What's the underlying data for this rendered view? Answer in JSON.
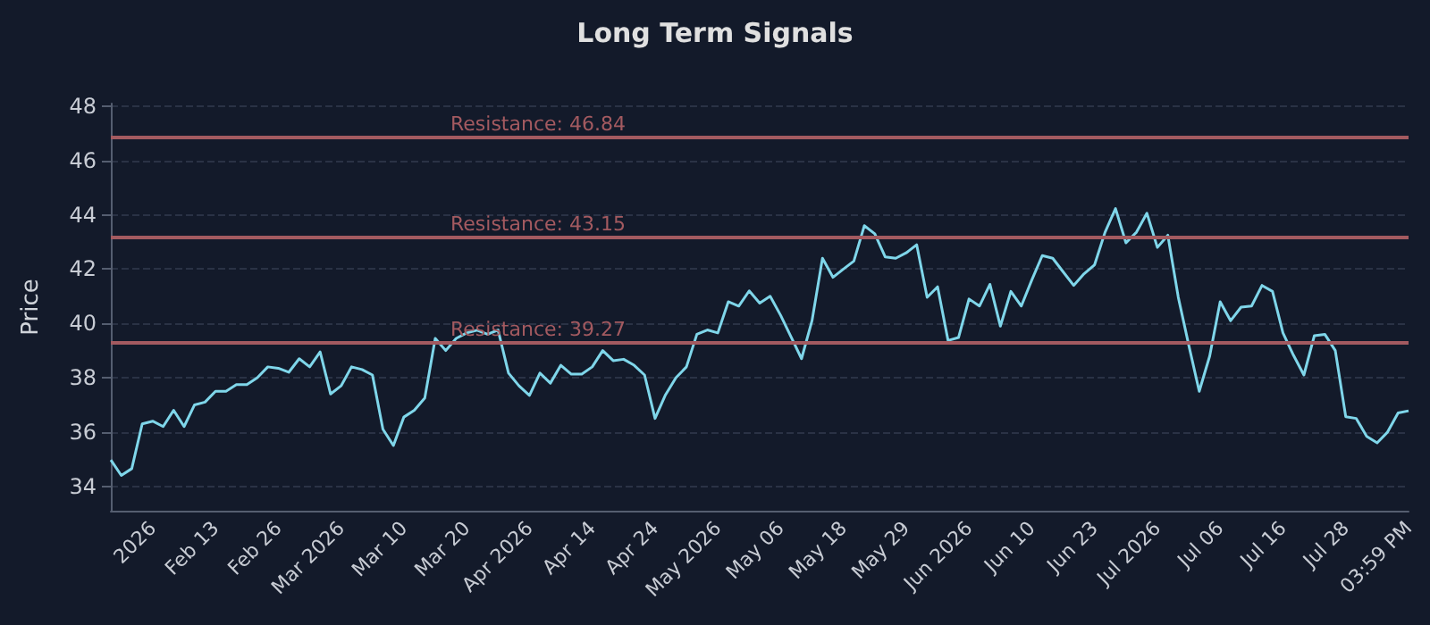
{
  "chart_data": {
    "type": "line",
    "title": "Long Term Signals",
    "ylabel": "Price",
    "categories": [
      null,
      null,
      null,
      null,
      "2026",
      null,
      null,
      null,
      null,
      null,
      "Feb 13",
      null,
      null,
      null,
      null,
      null,
      "Feb 26",
      null,
      null,
      null,
      null,
      null,
      "Mar 2026",
      null,
      null,
      null,
      null,
      null,
      "Mar 10",
      null,
      null,
      null,
      null,
      null,
      "Mar 20",
      null,
      null,
      null,
      null,
      null,
      "Apr 2026",
      null,
      null,
      null,
      null,
      null,
      "Apr 14",
      null,
      null,
      null,
      null,
      null,
      "Apr 24",
      null,
      null,
      null,
      null,
      null,
      "May 2026",
      null,
      null,
      null,
      null,
      null,
      "May 06",
      null,
      null,
      null,
      null,
      null,
      "May 18",
      null,
      null,
      null,
      null,
      null,
      "May 29",
      null,
      null,
      null,
      null,
      null,
      "Jun 2026",
      null,
      null,
      null,
      null,
      null,
      "Jun 10",
      null,
      null,
      null,
      null,
      null,
      "Jun 23",
      null,
      null,
      null,
      null,
      null,
      "Jul 2026",
      null,
      null,
      null,
      null,
      null,
      "Jul 06",
      null,
      null,
      null,
      null,
      null,
      "Jul 16",
      null,
      null,
      null,
      null,
      null,
      "Jul 28",
      null,
      null,
      null,
      null,
      null,
      "03:59 PM"
    ],
    "series": [
      {
        "color": "#7fd6ea",
        "values": [
          34.97,
          34.4,
          34.65,
          36.3,
          36.4,
          36.2,
          36.8,
          36.2,
          37.0,
          37.1,
          37.5,
          37.5,
          37.75,
          37.75,
          38.0,
          38.4,
          38.35,
          38.2,
          38.7,
          38.4,
          38.95,
          37.4,
          37.7,
          38.4,
          38.3,
          38.1,
          36.1,
          35.5,
          36.55,
          36.8,
          37.25,
          39.45,
          39.0,
          39.45,
          39.65,
          39.75,
          39.6,
          39.76,
          38.17,
          37.7,
          37.35,
          38.17,
          37.8,
          38.46,
          38.13,
          38.13,
          38.4,
          39.0,
          38.63,
          38.68,
          38.46,
          38.1,
          36.5,
          37.37,
          38.0,
          38.4,
          39.6,
          39.76,
          39.65,
          40.8,
          40.64,
          41.2,
          40.75,
          41.0,
          40.3,
          39.5,
          38.7,
          40.1,
          42.4,
          41.7,
          42.0,
          42.3,
          43.6,
          43.3,
          42.45,
          42.4,
          42.6,
          42.9,
          40.96,
          41.35,
          39.37,
          39.48,
          40.9,
          40.64,
          41.44,
          39.9,
          41.18,
          40.64,
          41.6,
          42.5,
          42.4,
          41.9,
          41.4,
          41.83,
          42.16,
          43.36,
          44.23,
          42.97,
          43.36,
          44.06,
          42.8,
          43.25,
          40.96,
          39.2,
          37.5,
          38.8,
          40.8,
          40.1,
          40.6,
          40.64,
          41.4,
          41.18,
          39.65,
          38.83,
          38.1,
          39.55,
          39.6,
          39.0,
          36.56,
          36.5,
          35.84,
          35.6,
          36.0,
          36.7,
          36.78
        ]
      }
    ],
    "ylim": [
      33.1,
      48.1
    ],
    "yticks": [
      34,
      36,
      38,
      40,
      42,
      44,
      46,
      48
    ],
    "grid": "y",
    "marker": "none",
    "line_style": "solid",
    "ref_lines": [
      {
        "axis": "y",
        "value": 46.84,
        "label": "Resistance: 46.84",
        "color": "#a35a60"
      },
      {
        "axis": "y",
        "value": 43.15,
        "label": "Resistance: 43.15",
        "color": "#a35a60"
      },
      {
        "axis": "y",
        "value": 39.27,
        "label": "Resistance: 39.27",
        "color": "#a35a60"
      }
    ]
  }
}
